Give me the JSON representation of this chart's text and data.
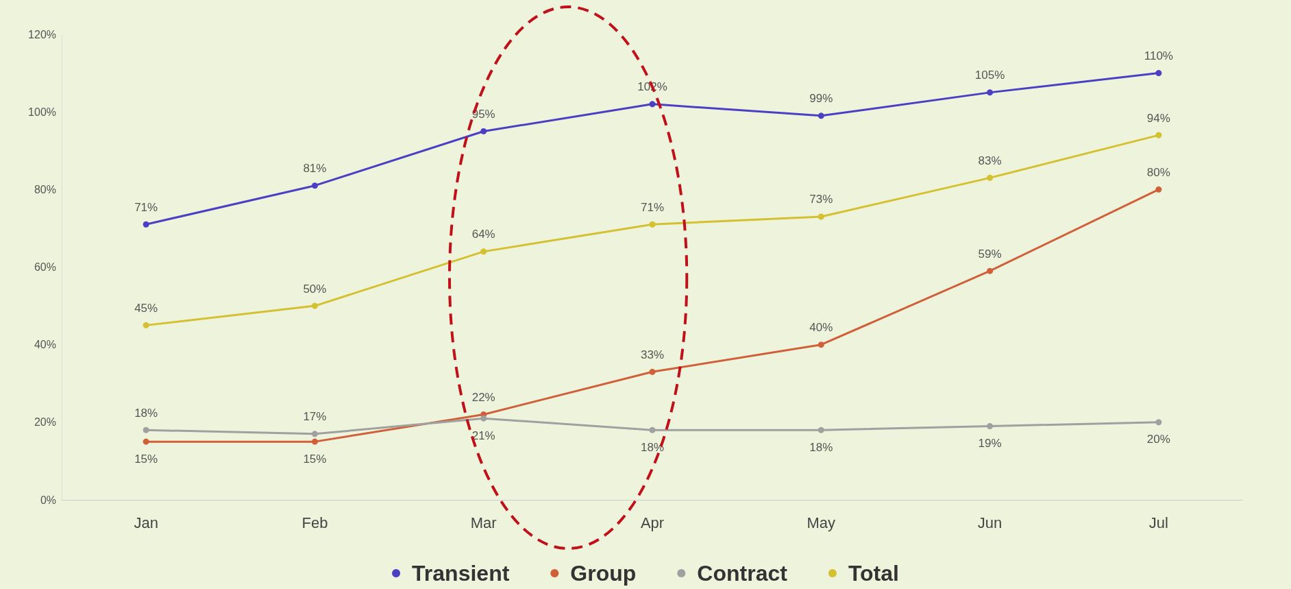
{
  "chart_data": {
    "type": "line",
    "categories": [
      "Jan",
      "Feb",
      "Mar",
      "Apr",
      "May",
      "Jun",
      "Jul"
    ],
    "series": [
      {
        "name": "Transient",
        "color": "#4b3fc4",
        "values": [
          71,
          81,
          95,
          102,
          99,
          105,
          110
        ],
        "value_labels": [
          "71%",
          "81%",
          "95%",
          "102%",
          "99%",
          "105%",
          "110%"
        ]
      },
      {
        "name": "Group",
        "color": "#d0603a",
        "values": [
          15,
          15,
          22,
          33,
          40,
          59,
          80
        ],
        "value_labels": [
          "15%",
          "15%",
          "22%",
          "33%",
          "40%",
          "59%",
          "80%"
        ]
      },
      {
        "name": "Contract",
        "color": "#a0a0a0",
        "values": [
          18,
          17,
          21,
          18,
          18,
          19,
          20
        ],
        "value_labels": [
          "18%",
          "17%",
          "21%",
          "18%",
          "18%",
          "19%",
          "20%"
        ]
      },
      {
        "name": "Total",
        "color": "#d4c030",
        "values": [
          45,
          50,
          64,
          71,
          73,
          83,
          94
        ],
        "value_labels": [
          "45%",
          "50%",
          "64%",
          "71%",
          "73%",
          "83%",
          "94%"
        ]
      }
    ],
    "ylim": [
      0,
      120
    ],
    "yticks": [
      {
        "value": 0,
        "label": "0%"
      },
      {
        "value": 20,
        "label": "20%"
      },
      {
        "value": 40,
        "label": "40%"
      },
      {
        "value": 60,
        "label": "60%"
      },
      {
        "value": 80,
        "label": "80%"
      },
      {
        "value": 100,
        "label": "100%"
      },
      {
        "value": 120,
        "label": "120%"
      }
    ],
    "grid": false,
    "legend": "bottom",
    "marker": "circle",
    "line_style": "solid"
  }
}
